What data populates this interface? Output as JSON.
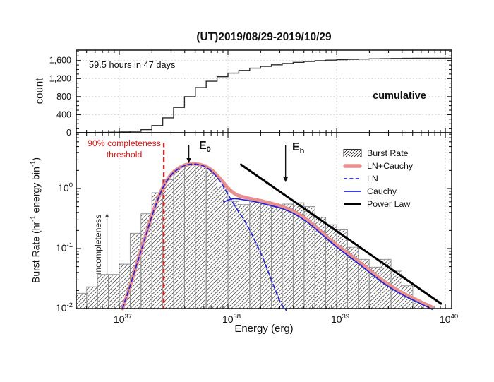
{
  "title": "(UT)2019/08/29-2019/10/29",
  "colors": {
    "axis": "#111111",
    "grid": "#c8c8c8",
    "step_line": "#2b2b2b",
    "bar_outline": "#8c8c8c",
    "bar_hatch": "#4f4f4f",
    "model_sum": "#e88f8f",
    "model_component": "#2323d8",
    "power_law": "#000000",
    "threshold": "#e41717",
    "annotation": "#111111"
  },
  "top_panel": {
    "ylabel": "count",
    "note": "59.5 hours in 47 days",
    "series_label": "cumulative"
  },
  "bottom_panel": {
    "xlabel": "Energy (erg)",
    "ylabel_parts": [
      {
        "t": "Burst Rate (hr"
      },
      {
        "sup": "-1"
      },
      {
        "t": " energy bin"
      },
      {
        "sup": "-1"
      },
      {
        "t": ")"
      }
    ],
    "threshold_label_line1": "90% completeness",
    "threshold_label_line2": "threshold",
    "incompleteness_label": "incompleteness",
    "e0": [
      {
        "t": "E"
      },
      {
        "sub": "0"
      }
    ],
    "eh": [
      {
        "t": "E"
      },
      {
        "sub": "h"
      }
    ],
    "legend": [
      {
        "label": "Burst Rate",
        "swatch": "hatch"
      },
      {
        "label": "LN+Cauchy",
        "swatch": "thick-salmon-line"
      },
      {
        "label": "LN",
        "swatch": "dashed-blue-line"
      },
      {
        "label": "Cauchy",
        "swatch": "solid-blue-line"
      },
      {
        "label": "Power Law",
        "swatch": "solid-black-line"
      }
    ]
  },
  "chart_data": [
    {
      "type": "line",
      "name": "cumulative-burst-count",
      "title": "(UT)2019/08/29-2019/10/29",
      "ylabel": "count",
      "annotation": "59.5 hours in 47 days",
      "series_label": "cumulative",
      "x_scale": "log",
      "xlim_log": [
        36.604,
        40.058
      ],
      "ylim": [
        0,
        1830
      ],
      "y_major_ticks": [
        0,
        400,
        800,
        1200,
        1600
      ],
      "y_tick_labels": [
        "0",
        "400",
        "800",
        "1,200",
        "1,600"
      ],
      "y_minor_step": 100,
      "grid": "dotted",
      "bin_start_log": 36.6,
      "bin_width_dex": 0.1,
      "cumulative_counts": [
        2,
        4,
        7,
        11,
        16,
        30,
        70,
        160,
        330,
        560,
        800,
        1000,
        1140,
        1240,
        1320,
        1380,
        1430,
        1470,
        1505,
        1535,
        1560,
        1580,
        1596,
        1608,
        1618,
        1626,
        1632,
        1637,
        1641,
        1645,
        1649,
        1652
      ],
      "total_bursts": 1652
    },
    {
      "type": "bar",
      "name": "burst-energy-distribution",
      "xlabel": "Energy (erg)",
      "ylabel": "Burst Rate (hr-1 energy bin-1)",
      "x_scale": "log",
      "y_scale": "log",
      "xlim_log": [
        36.604,
        40.058
      ],
      "ylim_log": [
        -2,
        0.929
      ],
      "x_tick_exponents": [
        37,
        38,
        39,
        40
      ],
      "y_tick_exponents": [
        0,
        -1,
        -2
      ],
      "grid": "dotted-vertical",
      "bin_start_log": 36.6,
      "bin_width_dex": 0.1,
      "bar_series_name": "Burst Rate",
      "bar_values": [
        0.018,
        0.023,
        0.037,
        0.037,
        0.055,
        0.18,
        0.38,
        0.85,
        1.4,
        2.1,
        2.6,
        2.5,
        1.9,
        1.1,
        0.61,
        0.54,
        0.62,
        0.55,
        0.48,
        0.55,
        0.58,
        0.5,
        0.33,
        0.25,
        0.205,
        0.105,
        0.066,
        0.049,
        0.066,
        0.042,
        0.024,
        0.013
      ],
      "series": [
        {
          "name": "LN+Cauchy",
          "style": "solid",
          "width": 5,
          "color_key": "model_sum",
          "points": [
            [
              37.03,
              0.01
            ],
            [
              37.1,
              0.024
            ],
            [
              37.17,
              0.062
            ],
            [
              37.24,
              0.16
            ],
            [
              37.31,
              0.4
            ],
            [
              37.39,
              0.95
            ],
            [
              37.47,
              1.65
            ],
            [
              37.55,
              2.2
            ],
            [
              37.62,
              2.5
            ],
            [
              37.67,
              2.58
            ],
            [
              37.72,
              2.55
            ],
            [
              37.79,
              2.35
            ],
            [
              37.86,
              1.95
            ],
            [
              37.93,
              1.45
            ],
            [
              38.0,
              1.02
            ],
            [
              38.07,
              0.8
            ],
            [
              38.12,
              0.74
            ],
            [
              38.2,
              0.68
            ],
            [
              38.3,
              0.625
            ],
            [
              38.4,
              0.565
            ],
            [
              38.5,
              0.5
            ],
            [
              38.62,
              0.4
            ],
            [
              38.75,
              0.28
            ],
            [
              38.88,
              0.175
            ],
            [
              39.0,
              0.115
            ],
            [
              39.15,
              0.072
            ],
            [
              39.3,
              0.044
            ],
            [
              39.45,
              0.027
            ],
            [
              39.6,
              0.0185
            ],
            [
              39.75,
              0.0135
            ],
            [
              39.88,
              0.0105
            ]
          ]
        },
        {
          "name": "LN",
          "style": "dashed",
          "width": 1.7,
          "color_key": "model_component",
          "points": [
            [
              37.03,
              0.01
            ],
            [
              37.1,
              0.024
            ],
            [
              37.17,
              0.061
            ],
            [
              37.24,
              0.155
            ],
            [
              37.31,
              0.39
            ],
            [
              37.39,
              0.93
            ],
            [
              37.47,
              1.62
            ],
            [
              37.55,
              2.17
            ],
            [
              37.62,
              2.47
            ],
            [
              37.67,
              2.55
            ],
            [
              37.72,
              2.52
            ],
            [
              37.79,
              2.3
            ],
            [
              37.86,
              1.85
            ],
            [
              37.93,
              1.3
            ],
            [
              38.0,
              0.8
            ],
            [
              38.08,
              0.46
            ],
            [
              38.16,
              0.275
            ],
            [
              38.24,
              0.145
            ],
            [
              38.32,
              0.07
            ],
            [
              38.4,
              0.03
            ],
            [
              38.48,
              0.013
            ],
            [
              38.54,
              0.0092
            ]
          ]
        },
        {
          "name": "Cauchy",
          "style": "solid",
          "width": 1.7,
          "color_key": "model_component",
          "points": [
            [
              37.96,
              0.6
            ],
            [
              38.05,
              0.675
            ],
            [
              38.15,
              0.645
            ],
            [
              38.25,
              0.6
            ],
            [
              38.35,
              0.545
            ],
            [
              38.5,
              0.462
            ],
            [
              38.62,
              0.37
            ],
            [
              38.75,
              0.258
            ],
            [
              38.88,
              0.162
            ],
            [
              39.0,
              0.106
            ],
            [
              39.15,
              0.066
            ],
            [
              39.3,
              0.0405
            ],
            [
              39.45,
              0.025
            ],
            [
              39.6,
              0.0172
            ],
            [
              39.75,
              0.0126
            ],
            [
              39.88,
              0.0097
            ]
          ]
        },
        {
          "name": "Power Law",
          "style": "solid",
          "width": 3,
          "color_key": "power_law",
          "points": [
            [
              38.12,
              2.5
            ],
            [
              39.96,
              0.0121
            ]
          ]
        }
      ],
      "threshold_line": {
        "log_energy": 37.41,
        "label": "90% completeness threshold"
      },
      "annotations": {
        "E0_log_energy": 37.64,
        "Eh_log_energy": 38.53,
        "incompleteness_arrow_log_energy": 36.887
      }
    }
  ]
}
